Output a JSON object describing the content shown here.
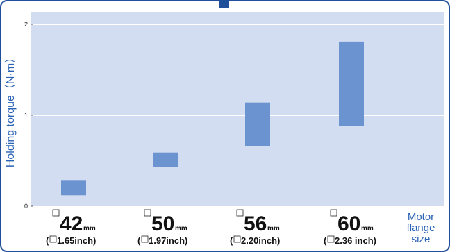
{
  "chart_data": {
    "type": "bar",
    "subtype": "floating-range",
    "title": "",
    "ylabel": "Holding torque（N·m）",
    "xlabel": "Motor flange size",
    "xlabel_lines": [
      "Motor",
      "flange",
      "size"
    ],
    "ylim": [
      0,
      2
    ],
    "yticks": [
      0,
      1,
      2
    ],
    "grid": true,
    "bar_color": "#6b93d0",
    "plot_bg": "#d3ddf1",
    "categories": [
      {
        "size": "42",
        "unit": "mm",
        "inch": "1.65inch"
      },
      {
        "size": "50",
        "unit": "mm",
        "inch": "1.97inch"
      },
      {
        "size": "56",
        "unit": "mm",
        "inch": "2.20inch"
      },
      {
        "size": "60",
        "unit": "mm",
        "inch": "2.36 inch"
      }
    ],
    "ranges": [
      {
        "low": 0.12,
        "high": 0.28
      },
      {
        "low": 0.43,
        "high": 0.59
      },
      {
        "low": 0.66,
        "high": 1.14
      },
      {
        "low": 0.88,
        "high": 1.81
      }
    ]
  }
}
